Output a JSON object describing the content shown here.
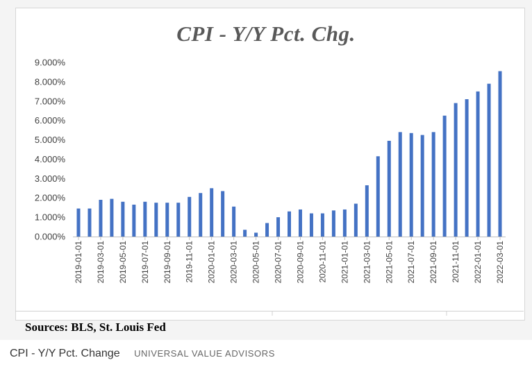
{
  "chart_data": {
    "type": "bar",
    "title": "CPI  - Y/Y Pct. Chg.",
    "ylim": [
      0,
      9
    ],
    "yticks": [
      "0.000%",
      "1.000%",
      "2.000%",
      "3.000%",
      "4.000%",
      "5.000%",
      "6.000%",
      "7.000%",
      "8.000%",
      "9.000%"
    ],
    "x_tick_labels": [
      "2019-01-01",
      "2019-03-01",
      "2019-05-01",
      "2019-07-01",
      "2019-09-01",
      "2019-11-01",
      "2020-01-01",
      "2020-03-01",
      "2020-05-01",
      "2020-07-01",
      "2020-09-01",
      "2020-11-01",
      "2021-01-01",
      "2021-03-01",
      "2021-05-01",
      "2021-07-01",
      "2021-09-01",
      "2021-11-01",
      "2022-01-01",
      "2022-03-01"
    ],
    "categories": [
      "2019-01-01",
      "2019-02-01",
      "2019-03-01",
      "2019-04-01",
      "2019-05-01",
      "2019-06-01",
      "2019-07-01",
      "2019-08-01",
      "2019-09-01",
      "2019-10-01",
      "2019-11-01",
      "2019-12-01",
      "2020-01-01",
      "2020-02-01",
      "2020-03-01",
      "2020-04-01",
      "2020-05-01",
      "2020-06-01",
      "2020-07-01",
      "2020-08-01",
      "2020-09-01",
      "2020-10-01",
      "2020-11-01",
      "2020-12-01",
      "2021-01-01",
      "2021-02-01",
      "2021-03-01",
      "2021-04-01",
      "2021-05-01",
      "2021-06-01",
      "2021-07-01",
      "2021-08-01",
      "2021-09-01",
      "2021-10-01",
      "2021-11-01",
      "2021-12-01",
      "2022-01-01",
      "2022-02-01",
      "2022-03-01"
    ],
    "values": [
      1.45,
      1.45,
      1.9,
      1.95,
      1.8,
      1.65,
      1.8,
      1.75,
      1.75,
      1.75,
      2.05,
      2.25,
      2.5,
      2.35,
      1.55,
      0.35,
      0.2,
      0.7,
      1.0,
      1.3,
      1.4,
      1.2,
      1.2,
      1.35,
      1.4,
      1.7,
      2.65,
      4.15,
      4.95,
      5.4,
      5.35,
      5.25,
      5.4,
      6.25,
      6.9,
      7.1,
      7.5,
      7.9,
      8.55
    ],
    "bar_color": "#4472c4",
    "grid": false,
    "legend": "none"
  },
  "source_note": "Sources: BLS, St. Louis Fed",
  "caption": {
    "title": "CPI - Y/Y Pct. Change",
    "credit": "UNIVERSAL VALUE ADVISORS"
  }
}
